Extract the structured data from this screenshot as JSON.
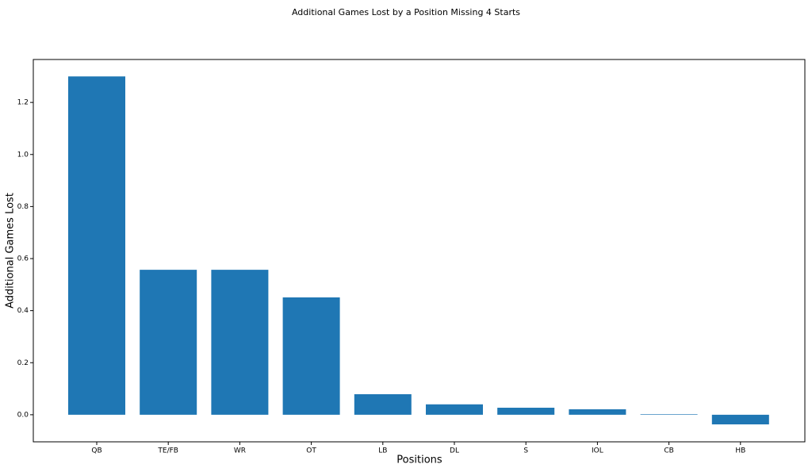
{
  "chart_data": {
    "type": "bar",
    "title": "Additional Games Lost by a Position Missing 4 Starts",
    "x_label": "Positions",
    "y_label": "Additional Games Lost",
    "categories": [
      "QB",
      "TE/FB",
      "WR",
      "OT",
      "LB",
      "DL",
      "S",
      "IOL",
      "CB",
      "HB"
    ],
    "values": [
      1.3,
      0.557,
      0.557,
      0.451,
      0.079,
      0.04,
      0.027,
      0.021,
      0.002,
      -0.037
    ],
    "color": "#1f77b4",
    "ylim": [
      -0.104,
      1.365
    ],
    "yticks": [
      {
        "value": 0,
        "label": "0.0"
      },
      {
        "value": 0.2,
        "label": "0.2"
      },
      {
        "value": 0.4,
        "label": "0.4"
      },
      {
        "value": 0.6,
        "label": "0.6"
      },
      {
        "value": 0.8,
        "label": "0.8"
      },
      {
        "value": 1.0,
        "label": "1.0"
      },
      {
        "value": 1.2,
        "label": "1.2"
      }
    ],
    "grid": false
  }
}
